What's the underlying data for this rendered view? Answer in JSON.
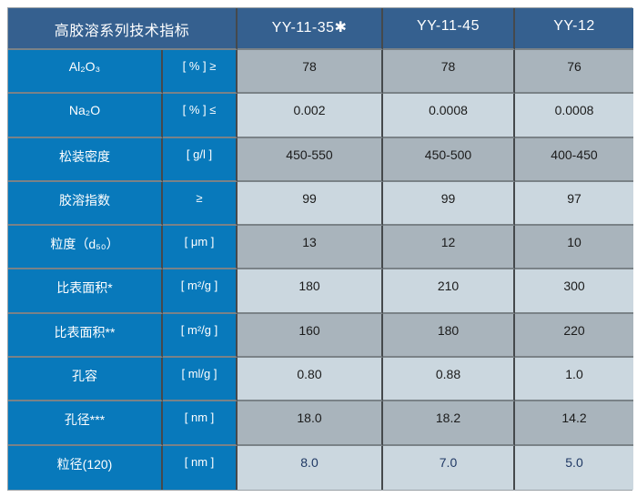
{
  "table": {
    "title": "高胶溶系列技术指标",
    "columns": [
      "YY-11-35✱",
      "YY-11-45",
      "YY-12"
    ],
    "rows": [
      {
        "label": "Al₂O₃",
        "unit": "[ % ] ≥",
        "values": [
          "78",
          "78",
          "76"
        ]
      },
      {
        "label": "Na₂O",
        "unit": "[ % ] ≤",
        "values": [
          "0.002",
          "0.0008",
          "0.0008"
        ]
      },
      {
        "label": "松装密度",
        "unit": "[ g/l ]",
        "values": [
          "450-550",
          "450-500",
          "400-450"
        ]
      },
      {
        "label": "胶溶指数",
        "unit": "≥",
        "values": [
          "99",
          "99",
          "97"
        ]
      },
      {
        "label": "粒度（d₅₀）",
        "unit": "[ μm ]",
        "values": [
          "13",
          "12",
          "10"
        ]
      },
      {
        "label": "比表面积*",
        "unit": "[ m²/g ]",
        "values": [
          "180",
          "210",
          "300"
        ]
      },
      {
        "label": "比表面积**",
        "unit": "[ m²/g ]",
        "values": [
          "160",
          "180",
          "220"
        ]
      },
      {
        "label": "孔容",
        "unit": "[ ml/g ]",
        "values": [
          "0.80",
          "0.88",
          "1.0"
        ]
      },
      {
        "label": "孔径***",
        "unit": "[ nm ]",
        "values": [
          "18.0",
          "18.2",
          "14.2"
        ]
      },
      {
        "label": "粒径(120)",
        "unit": "[ nm ]",
        "values": [
          "8.0",
          "7.0",
          "5.0"
        ]
      }
    ],
    "colors": {
      "header_bg": "#35608F",
      "label_bg": "#0879BB",
      "row_gray_bg": "#A9B4BC",
      "row_light_bg": "#CBD7DF",
      "header_text": "#FFFFFF",
      "value_text": "#1B1B1B",
      "highlight_value_text": "#1F3864"
    }
  }
}
